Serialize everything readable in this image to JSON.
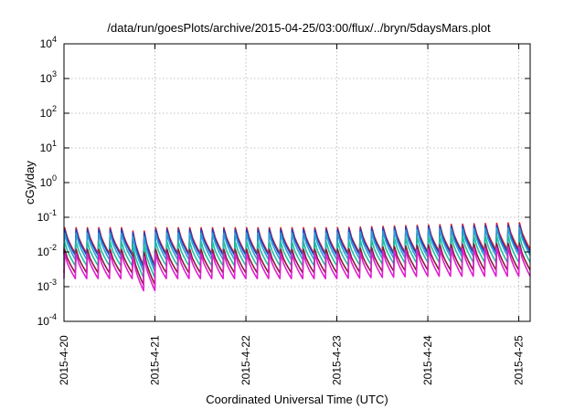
{
  "chart_data": {
    "type": "line",
    "title": "/data/run/goesPlots/archive/2015-04-25/03:00/flux/../bryn/5daysMars.plot",
    "xlabel": "Coordinated Universal Time (UTC)",
    "ylabel": "cGy/day",
    "yscale": "log",
    "ylim": [
      0.0001,
      10000
    ],
    "xlim": [
      "2015-04-20 00:00",
      "2015-04-25 03:00"
    ],
    "x_ticks": [
      "2015-4-20",
      "2015-4-21",
      "2015-4-22",
      "2015-4-23",
      "2015-4-24",
      "2015-4-25"
    ],
    "y_ticks": [
      {
        "base": "10",
        "exp": "4",
        "value": 10000
      },
      {
        "base": "10",
        "exp": "3",
        "value": 1000
      },
      {
        "base": "10",
        "exp": "2",
        "value": 100
      },
      {
        "base": "10",
        "exp": "1",
        "value": 10
      },
      {
        "base": "10",
        "exp": "0",
        "value": 1
      },
      {
        "base": "10",
        "exp": "-1",
        "value": 0.1
      },
      {
        "base": "10",
        "exp": "-2",
        "value": 0.01
      },
      {
        "base": "10",
        "exp": "-3",
        "value": 0.001
      },
      {
        "base": "10",
        "exp": "-4",
        "value": 0.0001
      }
    ],
    "grid": true,
    "cycles_per_day": 8,
    "series": [
      {
        "color": "#e41a1c",
        "peak": [
          0.05,
          0.05,
          0.05,
          0.05,
          0.06,
          0.07
        ],
        "trough": [
          0.009,
          0.009,
          0.009,
          0.009,
          0.01,
          0.012
        ]
      },
      {
        "color": "#1f3fbf",
        "peak": [
          0.045,
          0.045,
          0.045,
          0.045,
          0.055,
          0.06
        ],
        "trough": [
          0.008,
          0.008,
          0.008,
          0.008,
          0.009,
          0.01
        ]
      },
      {
        "color": "#2a9fd6",
        "peak": [
          0.035,
          0.035,
          0.035,
          0.035,
          0.045,
          0.05
        ],
        "trough": [
          0.006,
          0.006,
          0.006,
          0.006,
          0.007,
          0.008
        ]
      },
      {
        "color": "#20c0a0",
        "peak": [
          0.02,
          0.02,
          0.02,
          0.02,
          0.028,
          0.03
        ],
        "trough": [
          0.004,
          0.004,
          0.004,
          0.004,
          0.005,
          0.005
        ]
      },
      {
        "color": "#8b1a3a",
        "peak": [
          0.012,
          0.012,
          0.012,
          0.012,
          0.016,
          0.018
        ],
        "trough": [
          0.0025,
          0.0025,
          0.0025,
          0.0025,
          0.003,
          0.003
        ]
      },
      {
        "color": "#e020d0",
        "peak": [
          0.009,
          0.009,
          0.009,
          0.009,
          0.012,
          0.014
        ],
        "trough": [
          0.0017,
          0.0017,
          0.0017,
          0.0017,
          0.002,
          0.002
        ]
      }
    ],
    "dip": {
      "x": "2015-04-20 19:30",
      "factor": 0.45
    }
  }
}
